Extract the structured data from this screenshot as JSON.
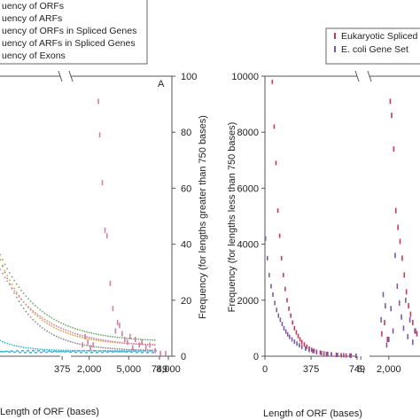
{
  "chart_data": [
    {
      "type": "scatter",
      "panel_label": "A",
      "xlabel": "Length of ORF (bases)",
      "ylabel_right": "Frequency (for lengths greater than 750 bases)",
      "left_segment": {
        "xlim": [
          0,
          749
        ],
        "xticks": [
          "375",
          "749"
        ]
      },
      "right_segment": {
        "xlim": [
          750,
          8000
        ],
        "xticks": [
          "2,000",
          "5,000",
          "8,000"
        ]
      },
      "right_axis": {
        "ylim": [
          0,
          100
        ],
        "yticks": [
          "0",
          "20",
          "40",
          "60",
          "80",
          "100"
        ]
      },
      "legend_entries": [
        "uency of ORFs",
        "uency of ARFs",
        "uency of ORFs in Spliced Genes",
        "uency of ARFs in Spliced Genes",
        "uency of Exons"
      ],
      "series": [
        {
          "legend": "uency of ORFs",
          "color": "#8a8a8a"
        },
        {
          "legend": "uency of ARFs",
          "color": "#d9a13a"
        },
        {
          "legend": "uency of ORFs in Spliced Genes",
          "color": "#6fa86a"
        },
        {
          "legend": "uency of ARFs in Spliced Genes",
          "color": "#d27fa6"
        },
        {
          "legend": "uency of Exons",
          "color": "#3bb8d6"
        }
      ],
      "right_points": [
        {
          "x": 1500,
          "y": 4
        },
        {
          "x": 1700,
          "y": 7
        },
        {
          "x": 1900,
          "y": 5
        },
        {
          "x": 2100,
          "y": 3
        },
        {
          "x": 2300,
          "y": 4
        },
        {
          "x": 2700,
          "y": 91
        },
        {
          "x": 2800,
          "y": 79
        },
        {
          "x": 3000,
          "y": 62
        },
        {
          "x": 3200,
          "y": 45
        },
        {
          "x": 3350,
          "y": 43
        },
        {
          "x": 3600,
          "y": 26
        },
        {
          "x": 3800,
          "y": 17
        },
        {
          "x": 4000,
          "y": 9
        },
        {
          "x": 4150,
          "y": 12
        },
        {
          "x": 4300,
          "y": 11
        },
        {
          "x": 4500,
          "y": 8
        },
        {
          "x": 4700,
          "y": 6
        },
        {
          "x": 4900,
          "y": 5
        },
        {
          "x": 5100,
          "y": 7
        },
        {
          "x": 5300,
          "y": 3
        },
        {
          "x": 5500,
          "y": 6
        },
        {
          "x": 5800,
          "y": 4
        },
        {
          "x": 6000,
          "y": 5
        },
        {
          "x": 6300,
          "y": 3
        },
        {
          "x": 6600,
          "y": 4
        },
        {
          "x": 7000,
          "y": 2
        },
        {
          "x": 7400,
          "y": 1
        },
        {
          "x": 7800,
          "y": 1
        }
      ]
    },
    {
      "type": "scatter",
      "xlabel": "Length of ORF (bases)",
      "ylabel": "Frequency (for lengths less than 750 bases)",
      "left_segment": {
        "xlim": [
          0,
          749
        ],
        "xticks": [
          "0",
          "375",
          "749"
        ]
      },
      "right_segment": {
        "xlim": [
          750,
          8000
        ],
        "xticks": [
          "2,000",
          "5,"
        ]
      },
      "left_axis": {
        "ylim": [
          0,
          10000
        ],
        "yticks": [
          "0",
          "2000",
          "4000",
          "6000",
          "8000",
          "10000"
        ]
      },
      "legend_entries": [
        "Eukaryotic Spliced",
        "E. coli Gene Set"
      ],
      "series": [
        {
          "legend": "Eukaryotic Spliced",
          "color": "#c8385a",
          "left_points": [
            {
              "x": 60,
              "y": 9800
            },
            {
              "x": 75,
              "y": 8200
            },
            {
              "x": 90,
              "y": 6900
            },
            {
              "x": 105,
              "y": 5200
            },
            {
              "x": 120,
              "y": 4300
            },
            {
              "x": 135,
              "y": 3500
            },
            {
              "x": 150,
              "y": 2900
            },
            {
              "x": 165,
              "y": 2400
            },
            {
              "x": 180,
              "y": 2000
            },
            {
              "x": 195,
              "y": 1700
            },
            {
              "x": 210,
              "y": 1450
            },
            {
              "x": 225,
              "y": 1200
            },
            {
              "x": 240,
              "y": 1000
            },
            {
              "x": 255,
              "y": 850
            },
            {
              "x": 270,
              "y": 720
            },
            {
              "x": 285,
              "y": 600
            },
            {
              "x": 300,
              "y": 500
            },
            {
              "x": 320,
              "y": 420
            },
            {
              "x": 340,
              "y": 340
            },
            {
              "x": 360,
              "y": 280
            },
            {
              "x": 380,
              "y": 230
            },
            {
              "x": 400,
              "y": 190
            },
            {
              "x": 420,
              "y": 160
            },
            {
              "x": 450,
              "y": 130
            },
            {
              "x": 480,
              "y": 100
            },
            {
              "x": 510,
              "y": 80
            },
            {
              "x": 540,
              "y": 60
            },
            {
              "x": 580,
              "y": 45
            },
            {
              "x": 620,
              "y": 35
            },
            {
              "x": 660,
              "y": 25
            },
            {
              "x": 700,
              "y": 20
            },
            {
              "x": 740,
              "y": 15
            }
          ],
          "right_points": [
            {
              "x": 1500,
              "y": 800
            },
            {
              "x": 1700,
              "y": 1200
            },
            {
              "x": 1900,
              "y": 600
            },
            {
              "x": 2100,
              "y": 9100
            },
            {
              "x": 2200,
              "y": 8600
            },
            {
              "x": 2350,
              "y": 7400
            },
            {
              "x": 2500,
              "y": 5200
            },
            {
              "x": 2650,
              "y": 4600
            },
            {
              "x": 2800,
              "y": 4100
            },
            {
              "x": 2950,
              "y": 3500
            },
            {
              "x": 3100,
              "y": 2900
            },
            {
              "x": 3250,
              "y": 2300
            },
            {
              "x": 3400,
              "y": 1800
            },
            {
              "x": 3550,
              "y": 1500
            },
            {
              "x": 3700,
              "y": 1200
            },
            {
              "x": 3850,
              "y": 900
            },
            {
              "x": 4000,
              "y": 800
            },
            {
              "x": 4150,
              "y": 1100
            },
            {
              "x": 4300,
              "y": 600
            },
            {
              "x": 4500,
              "y": 2600
            },
            {
              "x": 4650,
              "y": 2900
            },
            {
              "x": 4800,
              "y": 1300
            },
            {
              "x": 5000,
              "y": 700
            }
          ]
        },
        {
          "legend": "E. coli Gene Set",
          "color": "#7a5aa8",
          "left_points": [
            {
              "x": 5,
              "y": 4200
            },
            {
              "x": 20,
              "y": 3500
            },
            {
              "x": 35,
              "y": 2900
            },
            {
              "x": 50,
              "y": 2500
            },
            {
              "x": 65,
              "y": 2200
            },
            {
              "x": 80,
              "y": 1900
            },
            {
              "x": 95,
              "y": 1650
            },
            {
              "x": 110,
              "y": 1450
            },
            {
              "x": 125,
              "y": 1300
            },
            {
              "x": 140,
              "y": 1150
            },
            {
              "x": 155,
              "y": 1000
            },
            {
              "x": 170,
              "y": 880
            },
            {
              "x": 185,
              "y": 780
            },
            {
              "x": 200,
              "y": 690
            },
            {
              "x": 220,
              "y": 600
            },
            {
              "x": 240,
              "y": 520
            },
            {
              "x": 260,
              "y": 450
            },
            {
              "x": 280,
              "y": 390
            },
            {
              "x": 300,
              "y": 330
            },
            {
              "x": 330,
              "y": 270
            },
            {
              "x": 360,
              "y": 220
            },
            {
              "x": 390,
              "y": 180
            },
            {
              "x": 420,
              "y": 145
            },
            {
              "x": 460,
              "y": 110
            },
            {
              "x": 500,
              "y": 85
            },
            {
              "x": 540,
              "y": 65
            },
            {
              "x": 590,
              "y": 48
            },
            {
              "x": 640,
              "y": 35
            },
            {
              "x": 690,
              "y": 25
            },
            {
              "x": 740,
              "y": 18
            }
          ],
          "right_points": [
            {
              "x": 1450,
              "y": 1300
            },
            {
              "x": 1600,
              "y": 2200
            },
            {
              "x": 1750,
              "y": 1800
            },
            {
              "x": 1850,
              "y": 400
            },
            {
              "x": 2000,
              "y": 600
            },
            {
              "x": 2150,
              "y": 1700
            },
            {
              "x": 2300,
              "y": 900
            },
            {
              "x": 2450,
              "y": 3600
            },
            {
              "x": 2600,
              "y": 2500
            },
            {
              "x": 2750,
              "y": 1900
            },
            {
              "x": 2900,
              "y": 1400
            },
            {
              "x": 3050,
              "y": 1000
            },
            {
              "x": 3200,
              "y": 2000
            },
            {
              "x": 3350,
              "y": 700
            },
            {
              "x": 3500,
              "y": 1300
            },
            {
              "x": 3700,
              "y": 500
            },
            {
              "x": 3900,
              "y": 900
            },
            {
              "x": 4100,
              "y": 400
            },
            {
              "x": 4300,
              "y": 2200
            },
            {
              "x": 4500,
              "y": 1600
            },
            {
              "x": 4700,
              "y": 500
            }
          ]
        }
      ]
    }
  ]
}
